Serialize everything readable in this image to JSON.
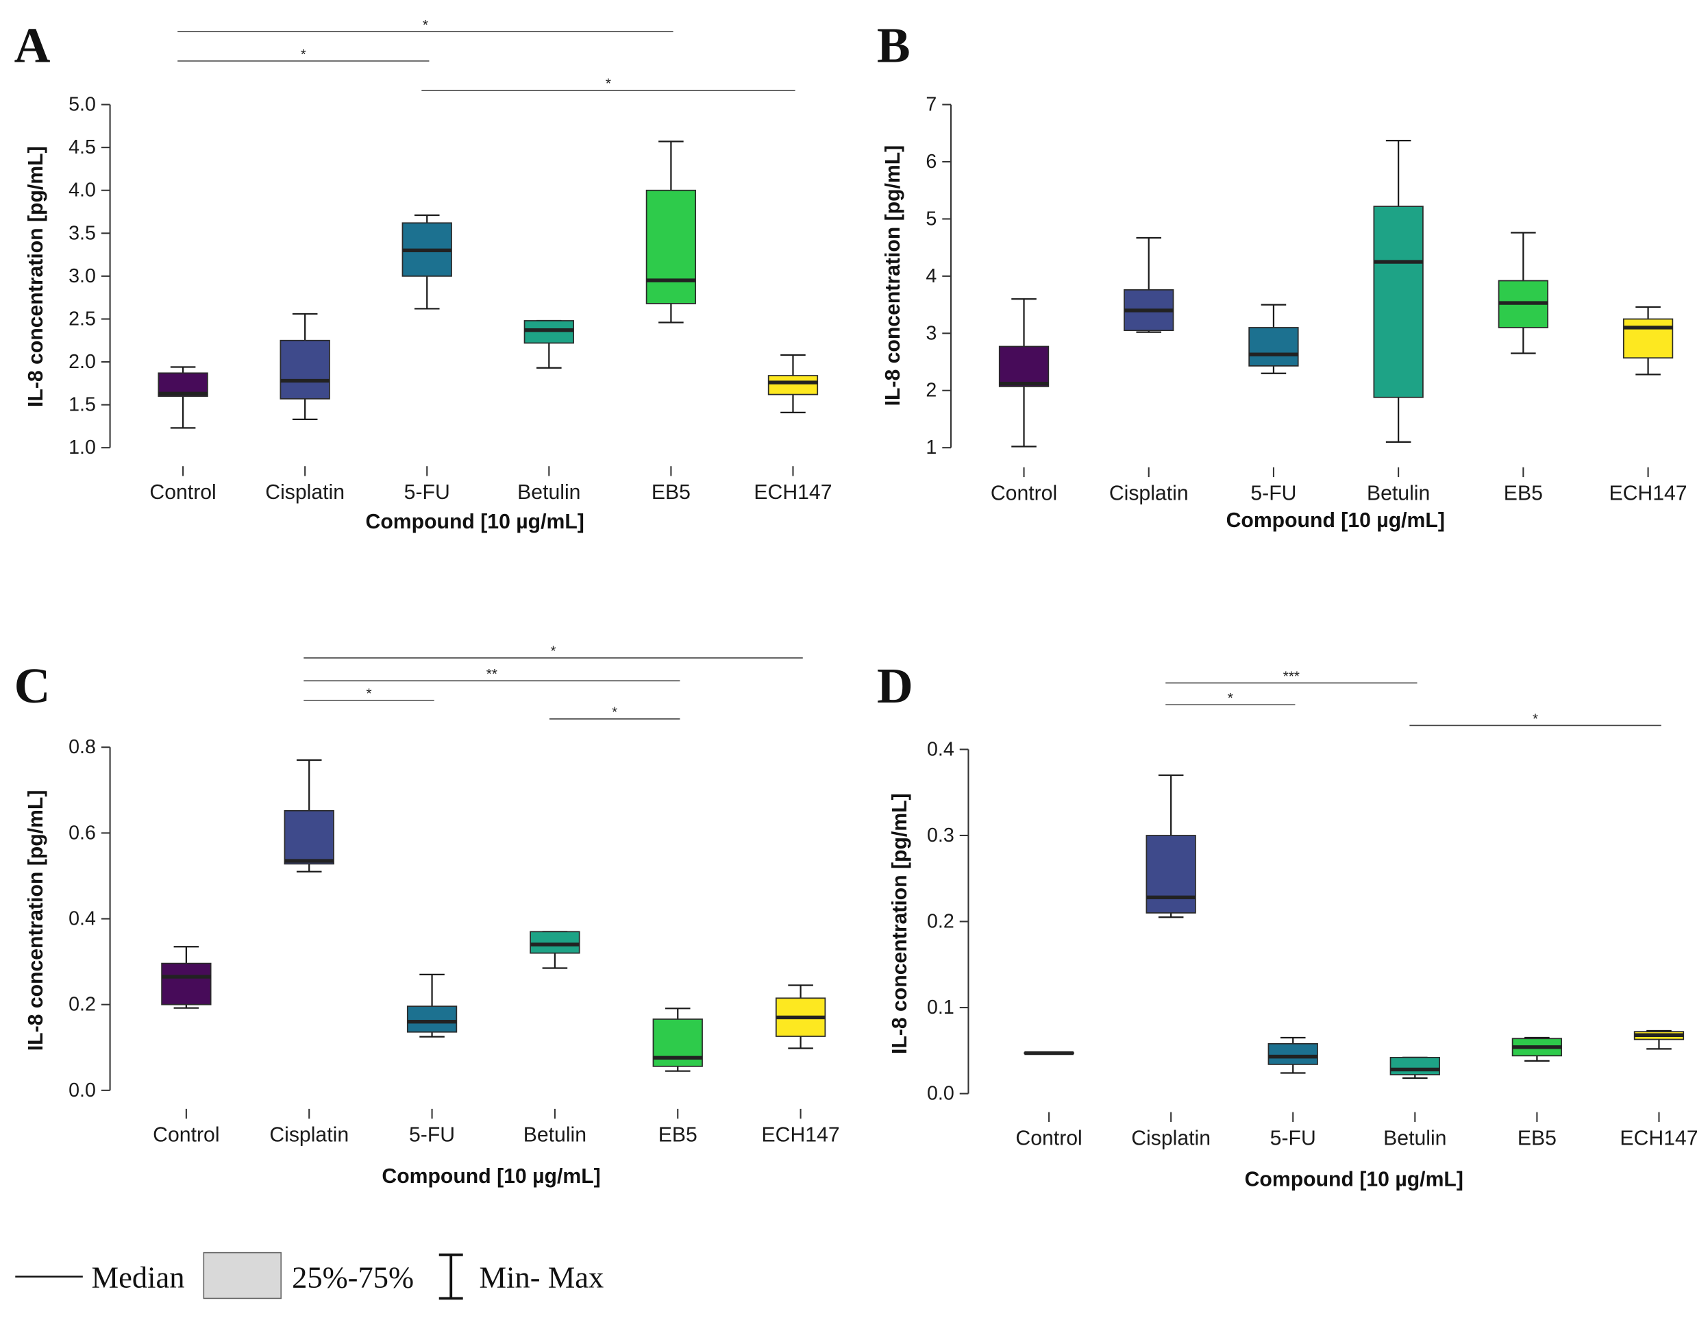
{
  "legend": {
    "median": "Median",
    "iqr": "25%-75%",
    "range": "Min- Max"
  },
  "colors": [
    "#470b59",
    "#3e4a8b",
    "#1c7190",
    "#1ea386",
    "#2ecb4b",
    "#fde820"
  ],
  "chart_data": [
    {
      "type": "box",
      "panel": "A",
      "xlabel": "Compound [10 µg/mL]",
      "ylabel": "IL-8 concentration [pg/mL]",
      "ylim": [
        1.0,
        5.0
      ],
      "yticks": [
        "1.0",
        "1.5",
        "2.0",
        "2.5",
        "3.0",
        "3.5",
        "4.0",
        "4.5",
        "5.0"
      ],
      "categories": [
        "Control",
        "Cisplatin",
        "5-FU",
        "Betulin",
        "EB5",
        "ECH147"
      ],
      "boxes": [
        {
          "min": 1.23,
          "q1": 1.6,
          "median": 1.63,
          "q3": 1.87,
          "max": 1.94
        },
        {
          "min": 1.33,
          "q1": 1.57,
          "median": 1.78,
          "q3": 2.25,
          "max": 2.56
        },
        {
          "min": 2.62,
          "q1": 3.0,
          "median": 3.3,
          "q3": 3.62,
          "max": 3.71
        },
        {
          "min": 1.93,
          "q1": 2.22,
          "median": 2.37,
          "q3": 2.48,
          "max": 2.48
        },
        {
          "min": 2.46,
          "q1": 2.68,
          "median": 2.95,
          "q3": 4.0,
          "max": 4.57
        },
        {
          "min": 1.41,
          "q1": 1.62,
          "median": 1.76,
          "q3": 1.84,
          "max": 2.08
        }
      ],
      "significance": [
        {
          "from": 0,
          "to": 4,
          "label": "*"
        },
        {
          "from": 0,
          "to": 2,
          "label": "*"
        },
        {
          "from": 2,
          "to": 5,
          "label": "*"
        }
      ]
    },
    {
      "type": "box",
      "panel": "B",
      "xlabel": "Compound [10 µg/mL]",
      "ylabel": "IL-8 concentration [pg/mL]",
      "ylim": [
        1,
        7
      ],
      "yticks": [
        "1",
        "2",
        "3",
        "4",
        "5",
        "6",
        "7"
      ],
      "categories": [
        "Control",
        "Cisplatin",
        "5-FU",
        "Betulin",
        "EB5",
        "ECH147"
      ],
      "boxes": [
        {
          "min": 1.02,
          "q1": 2.07,
          "median": 2.12,
          "q3": 2.77,
          "max": 3.6
        },
        {
          "min": 3.02,
          "q1": 3.05,
          "median": 3.4,
          "q3": 3.76,
          "max": 4.67
        },
        {
          "min": 2.3,
          "q1": 2.43,
          "median": 2.63,
          "q3": 3.1,
          "max": 3.5
        },
        {
          "min": 1.1,
          "q1": 1.88,
          "median": 4.25,
          "q3": 5.22,
          "max": 6.37
        },
        {
          "min": 2.65,
          "q1": 3.1,
          "median": 3.53,
          "q3": 3.92,
          "max": 4.76
        },
        {
          "min": 2.28,
          "q1": 2.57,
          "median": 3.1,
          "q3": 3.25,
          "max": 3.46
        }
      ],
      "significance": []
    },
    {
      "type": "box",
      "panel": "C",
      "xlabel": "Compound [10 µg/mL]",
      "ylabel": "IL-8 concentration [pg/mL]",
      "ylim": [
        0.0,
        0.8
      ],
      "yticks": [
        "0.0",
        "0.2",
        "0.4",
        "0.6",
        "0.8"
      ],
      "categories": [
        "Control",
        "Cisplatin",
        "5-FU",
        "Betulin",
        "EB5",
        "ECH147"
      ],
      "boxes": [
        {
          "min": 0.192,
          "q1": 0.2,
          "median": 0.265,
          "q3": 0.296,
          "max": 0.335
        },
        {
          "min": 0.51,
          "q1": 0.528,
          "median": 0.535,
          "q3": 0.652,
          "max": 0.77
        },
        {
          "min": 0.125,
          "q1": 0.136,
          "median": 0.16,
          "q3": 0.196,
          "max": 0.27
        },
        {
          "min": 0.285,
          "q1": 0.32,
          "median": 0.34,
          "q3": 0.37,
          "max": 0.37
        },
        {
          "min": 0.045,
          "q1": 0.056,
          "median": 0.076,
          "q3": 0.166,
          "max": 0.191
        },
        {
          "min": 0.098,
          "q1": 0.126,
          "median": 0.17,
          "q3": 0.215,
          "max": 0.245
        }
      ],
      "significance": [
        {
          "from": 1,
          "to": 5,
          "label": "*"
        },
        {
          "from": 1,
          "to": 4,
          "label": "**"
        },
        {
          "from": 1,
          "to": 2,
          "label": "*"
        },
        {
          "from": 3,
          "to": 4,
          "label": "*"
        }
      ]
    },
    {
      "type": "box",
      "panel": "D",
      "xlabel": "Compound [10 µg/mL]",
      "ylabel": "IL-8 concentration [pg/mL]",
      "ylim": [
        0.0,
        0.4
      ],
      "yticks": [
        "0.0",
        "0.1",
        "0.2",
        "0.3",
        "0.4"
      ],
      "categories": [
        "Control",
        "Cisplatin",
        "5-FU",
        "Betulin",
        "EB5",
        "ECH147"
      ],
      "boxes": [
        {
          "min": 0.0465,
          "q1": 0.0465,
          "median": 0.047,
          "q3": 0.0475,
          "max": 0.0475
        },
        {
          "min": 0.205,
          "q1": 0.21,
          "median": 0.228,
          "q3": 0.3,
          "max": 0.37
        },
        {
          "min": 0.024,
          "q1": 0.034,
          "median": 0.043,
          "q3": 0.058,
          "max": 0.065
        },
        {
          "min": 0.018,
          "q1": 0.022,
          "median": 0.028,
          "q3": 0.042,
          "max": 0.042
        },
        {
          "min": 0.038,
          "q1": 0.044,
          "median": 0.054,
          "q3": 0.064,
          "max": 0.065
        },
        {
          "min": 0.052,
          "q1": 0.063,
          "median": 0.068,
          "q3": 0.072,
          "max": 0.073
        }
      ],
      "significance": [
        {
          "from": 1,
          "to": 3,
          "label": "***"
        },
        {
          "from": 1,
          "to": 2,
          "label": "*"
        },
        {
          "from": 3,
          "to": 5,
          "label": "*"
        }
      ]
    }
  ]
}
